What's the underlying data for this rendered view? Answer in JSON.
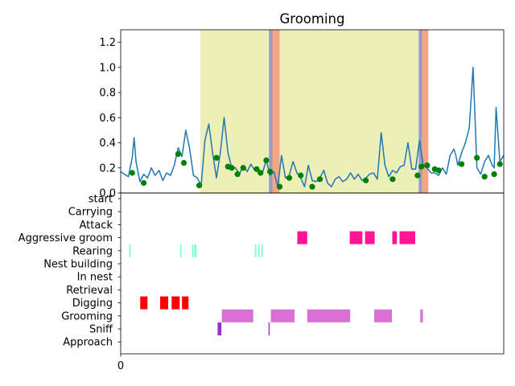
{
  "chart_data": [
    {
      "type": "line",
      "title": "Grooming",
      "xlim": [
        0,
        100
      ],
      "ylim": [
        0,
        1.3
      ],
      "yticks": [
        0.0,
        0.2,
        0.4,
        0.6,
        0.8,
        1.0,
        1.2
      ],
      "ytick_labels": [
        "0.0",
        "0.2",
        "0.4",
        "0.6",
        "0.8",
        "1.0",
        "1.2"
      ],
      "line_color": "#1f77b4",
      "marker_color": "#008000",
      "spans": [
        {
          "x0": 20.8,
          "x1": 38.7,
          "color": "#eeeeb8"
        },
        {
          "x0": 38.7,
          "x1": 39.6,
          "color": "#9a9ac8"
        },
        {
          "x0": 39.6,
          "x1": 41.5,
          "color": "#f4a582"
        },
        {
          "x0": 41.5,
          "x1": 77.8,
          "color": "#eeeeb8"
        },
        {
          "x0": 77.8,
          "x1": 78.7,
          "color": "#9a9ac8"
        },
        {
          "x0": 78.7,
          "x1": 80.3,
          "color": "#f4a582"
        }
      ],
      "series": [
        {
          "x": [
            0,
            1,
            2,
            3,
            3.5,
            4,
            5,
            6,
            7,
            8,
            9,
            10,
            11,
            12,
            13,
            14,
            15,
            16,
            17,
            18,
            19,
            20,
            21,
            22,
            23,
            24,
            25,
            26,
            27,
            28,
            29,
            30,
            31,
            32,
            33,
            34,
            35,
            36,
            37,
            38,
            39,
            40,
            41,
            42,
            43,
            44,
            45,
            46,
            47,
            48,
            49,
            50,
            51,
            52,
            53,
            54,
            55,
            56,
            57,
            58,
            59,
            60,
            61,
            62,
            63,
            64,
            65,
            66,
            67,
            68,
            69,
            70,
            71,
            72,
            73,
            74,
            75,
            76,
            77,
            78,
            79,
            80,
            81,
            82,
            83,
            84,
            85,
            86,
            87,
            87.5,
            88,
            89,
            90,
            91,
            92,
            93,
            94,
            95,
            96,
            97,
            97.5,
            98,
            99,
            100
          ],
          "y": [
            0.17,
            0.15,
            0.13,
            0.28,
            0.44,
            0.25,
            0.09,
            0.15,
            0.12,
            0.2,
            0.14,
            0.18,
            0.1,
            0.16,
            0.14,
            0.22,
            0.36,
            0.29,
            0.5,
            0.35,
            0.14,
            0.12,
            0.06,
            0.42,
            0.55,
            0.32,
            0.12,
            0.32,
            0.6,
            0.32,
            0.2,
            0.2,
            0.15,
            0.22,
            0.17,
            0.23,
            0.18,
            0.18,
            0.16,
            0.26,
            0.14,
            0.17,
            0.05,
            0.3,
            0.12,
            0.14,
            0.25,
            0.16,
            0.12,
            0.05,
            0.22,
            0.1,
            0.09,
            0.12,
            0.18,
            0.08,
            0.05,
            0.11,
            0.13,
            0.09,
            0.11,
            0.16,
            0.11,
            0.15,
            0.1,
            0.12,
            0.15,
            0.16,
            0.11,
            0.48,
            0.22,
            0.13,
            0.18,
            0.16,
            0.21,
            0.22,
            0.4,
            0.19,
            0.19,
            0.42,
            0.22,
            0.2,
            0.16,
            0.16,
            0.14,
            0.2,
            0.15,
            0.3,
            0.35,
            0.3,
            0.22,
            0.32,
            0.4,
            0.52,
            1.0,
            0.2,
            0.15,
            0.25,
            0.3,
            0.22,
            0.2,
            0.68,
            0.25,
            0.3
          ]
        }
      ],
      "markers": {
        "x": [
          3,
          6,
          15,
          16.5,
          20.5,
          25,
          28,
          29,
          30.5,
          32,
          35.5,
          36.5,
          38,
          39,
          41.5,
          44,
          47,
          50,
          52,
          64,
          71,
          77.5,
          78.5,
          80,
          82,
          83,
          89,
          93,
          95,
          97.5,
          99
        ],
        "y": [
          0.16,
          0.08,
          0.31,
          0.24,
          0.06,
          0.28,
          0.21,
          0.2,
          0.15,
          0.2,
          0.19,
          0.16,
          0.26,
          0.17,
          0.05,
          0.12,
          0.14,
          0.05,
          0.11,
          0.1,
          0.11,
          0.14,
          0.21,
          0.22,
          0.19,
          0.18,
          0.23,
          0.28,
          0.13,
          0.15,
          0.23
        ]
      }
    },
    {
      "type": "event_raster",
      "xlim": [
        0,
        100
      ],
      "xticks": [
        0
      ],
      "xtick_labels": [
        "0"
      ],
      "categories": [
        "start",
        "Carrying",
        "Attack",
        "Aggressive groom",
        "Rearing",
        "Nest building",
        "In nest",
        "Retrieval",
        "Digging",
        "Grooming",
        "Sniff",
        "Approach"
      ],
      "events": [
        {
          "category": "Aggressive groom",
          "color": "#ff1493",
          "intervals": [
            [
              46.1,
              48.7
            ],
            [
              59.8,
              63.1
            ],
            [
              63.8,
              66.3
            ],
            [
              70.9,
              72.1
            ],
            [
              72.8,
              76.9
            ]
          ]
        },
        {
          "category": "Rearing",
          "color": "#7fffd4",
          "intervals": [
            [
              2.2,
              2.6
            ],
            [
              15.5,
              15.9
            ],
            [
              18.6,
              19.0
            ],
            [
              19.2,
              19.8
            ],
            [
              35.0,
              35.4
            ],
            [
              35.9,
              36.3
            ],
            [
              36.7,
              37.1
            ]
          ]
        },
        {
          "category": "Digging",
          "color": "#ff0000",
          "intervals": [
            [
              5.1,
              7.0
            ],
            [
              10.3,
              12.4
            ],
            [
              13.3,
              15.4
            ],
            [
              16.0,
              17.7
            ]
          ]
        },
        {
          "category": "Grooming",
          "color": "#da70d6",
          "intervals": [
            [
              26.4,
              34.6
            ],
            [
              39.2,
              45.4
            ],
            [
              48.7,
              59.9
            ],
            [
              66.2,
              70.8
            ],
            [
              78.2,
              78.9
            ]
          ]
        },
        {
          "category": "Sniff",
          "color": "#9932cc",
          "intervals": [
            [
              25.3,
              26.3
            ],
            [
              38.6,
              38.9
            ]
          ]
        }
      ]
    }
  ]
}
